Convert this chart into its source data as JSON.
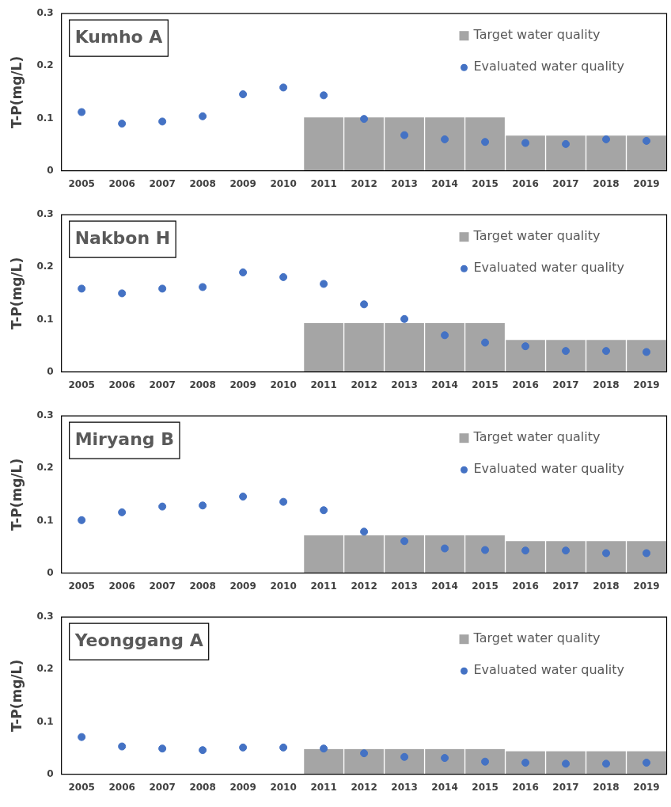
{
  "chart_data": [
    {
      "type": "bar",
      "title": "Kumho A",
      "ylabel": "T-P(mg/L)",
      "categories": [
        "2005",
        "2006",
        "2007",
        "2008",
        "2009",
        "2010",
        "2011",
        "2012",
        "2013",
        "2014",
        "2015",
        "2016",
        "2017",
        "2018",
        "2019"
      ],
      "ylim": [
        0,
        0.3
      ],
      "yticks": [
        0,
        0.1,
        0.2,
        0.3
      ],
      "grid": false,
      "legend": "top right",
      "marker": "circle",
      "series": [
        {
          "name": "Target water quality",
          "color": "#a5a5a5",
          "values": [
            null,
            null,
            null,
            null,
            null,
            null,
            0.102,
            0.102,
            0.102,
            0.102,
            0.102,
            0.067,
            0.067,
            0.067,
            0.067
          ]
        },
        {
          "name": "Evaluated water quality",
          "type": "scatter",
          "color": "#4472c4",
          "values": [
            0.112,
            0.09,
            0.094,
            0.104,
            0.146,
            0.159,
            0.144,
            0.099,
            0.068,
            0.06,
            0.055,
            0.053,
            0.051,
            0.06,
            0.057
          ]
        }
      ]
    },
    {
      "type": "bar",
      "title": "Nakbon H",
      "ylabel": "T-P(mg/L)",
      "categories": [
        "2005",
        "2006",
        "2007",
        "2008",
        "2009",
        "2010",
        "2011",
        "2012",
        "2013",
        "2014",
        "2015",
        "2016",
        "2017",
        "2018",
        "2019"
      ],
      "ylim": [
        0,
        0.3
      ],
      "yticks": [
        0,
        0.1,
        0.2,
        0.3
      ],
      "grid": false,
      "legend": "top right",
      "marker": "circle",
      "series": [
        {
          "name": "Target water quality",
          "color": "#a5a5a5",
          "values": [
            null,
            null,
            null,
            null,
            null,
            null,
            0.093,
            0.093,
            0.093,
            0.093,
            0.093,
            0.061,
            0.061,
            0.061,
            0.061
          ]
        },
        {
          "name": "Evaluated water quality",
          "type": "scatter",
          "color": "#4472c4",
          "values": [
            0.159,
            0.15,
            0.159,
            0.162,
            0.19,
            0.181,
            0.168,
            0.129,
            0.101,
            0.07,
            0.056,
            0.049,
            0.04,
            0.04,
            0.038
          ]
        }
      ]
    },
    {
      "type": "bar",
      "title": "Miryang B",
      "ylabel": "T-P(mg/L)",
      "categories": [
        "2005",
        "2006",
        "2007",
        "2008",
        "2009",
        "2010",
        "2011",
        "2012",
        "2013",
        "2014",
        "2015",
        "2016",
        "2017",
        "2018",
        "2019"
      ],
      "ylim": [
        0,
        0.3
      ],
      "yticks": [
        0,
        0.1,
        0.2,
        0.3
      ],
      "grid": false,
      "legend": "top right",
      "marker": "circle",
      "series": [
        {
          "name": "Target water quality",
          "color": "#a5a5a5",
          "values": [
            null,
            null,
            null,
            null,
            null,
            null,
            0.072,
            0.072,
            0.072,
            0.072,
            0.072,
            0.061,
            0.061,
            0.061,
            0.061
          ]
        },
        {
          "name": "Evaluated water quality",
          "type": "scatter",
          "color": "#4472c4",
          "values": [
            0.101,
            0.116,
            0.127,
            0.129,
            0.146,
            0.136,
            0.12,
            0.079,
            0.061,
            0.047,
            0.044,
            0.043,
            0.043,
            0.038,
            0.038
          ]
        }
      ]
    },
    {
      "type": "bar",
      "title": "Yeonggang A",
      "ylabel": "T-P(mg/L)",
      "categories": [
        "2005",
        "2006",
        "2007",
        "2008",
        "2009",
        "2010",
        "2011",
        "2012",
        "2013",
        "2014",
        "2015",
        "2016",
        "2017",
        "2018",
        "2019"
      ],
      "ylim": [
        0,
        0.3
      ],
      "yticks": [
        0,
        0.1,
        0.2,
        0.3
      ],
      "grid": false,
      "legend": "top right",
      "marker": "circle",
      "series": [
        {
          "name": "Target water quality",
          "color": "#a5a5a5",
          "values": [
            null,
            null,
            null,
            null,
            null,
            null,
            0.048,
            0.048,
            0.048,
            0.048,
            0.048,
            0.044,
            0.044,
            0.044,
            0.044
          ]
        },
        {
          "name": "Evaluated water quality",
          "type": "scatter",
          "color": "#4472c4",
          "values": [
            0.071,
            0.053,
            0.049,
            0.046,
            0.051,
            0.051,
            0.049,
            0.04,
            0.033,
            0.031,
            0.024,
            0.022,
            0.02,
            0.02,
            0.022
          ]
        }
      ]
    }
  ]
}
